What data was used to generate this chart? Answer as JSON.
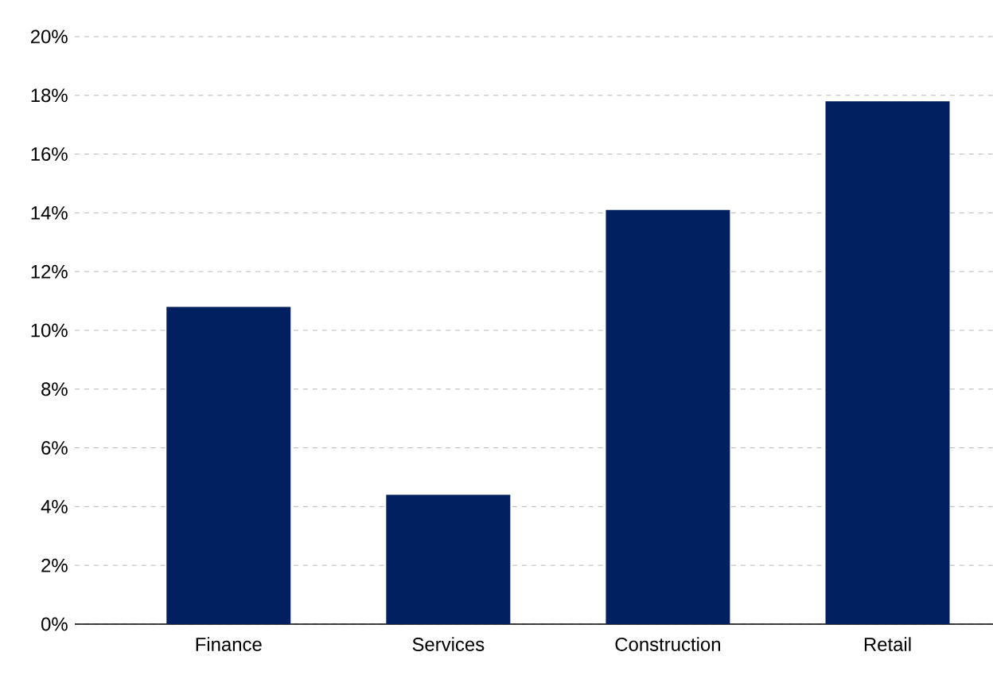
{
  "chart_data": {
    "type": "bar",
    "categories": [
      "Finance",
      "Services",
      "Construction",
      "Retail"
    ],
    "values": [
      10.8,
      4.4,
      14.1,
      17.8
    ],
    "color": "#002060",
    "ylim": [
      0,
      20
    ],
    "yticks": [
      {
        "value": 0,
        "label": "0%"
      },
      {
        "value": 2,
        "label": "2%"
      },
      {
        "value": 4,
        "label": "4%"
      },
      {
        "value": 6,
        "label": "6%"
      },
      {
        "value": 8,
        "label": "8%"
      },
      {
        "value": 10,
        "label": "10%"
      },
      {
        "value": 12,
        "label": "12%"
      },
      {
        "value": 14,
        "label": "14%"
      },
      {
        "value": 16,
        "label": "16%"
      },
      {
        "value": 18,
        "label": "18%"
      },
      {
        "value": 20,
        "label": "20%"
      }
    ],
    "grid": "y"
  }
}
